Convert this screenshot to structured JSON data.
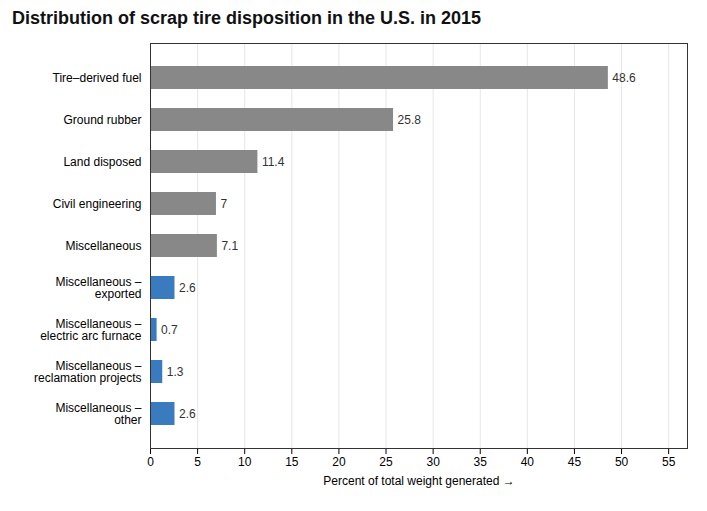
{
  "chart_data": {
    "type": "bar",
    "orientation": "horizontal",
    "title": "Distribution of scrap tire disposition in the U.S. in 2015",
    "categories": [
      "Miscellaneous –\n   other",
      "Miscellaneous –\nreclamation projects",
      "Miscellaneous –\nelectric arc furnace",
      "Miscellaneous –\n   exported",
      "Miscellaneous",
      "Civil engineering",
      "Land disposed",
      "Ground rubber",
      "Tire–derived fuel"
    ],
    "values": [
      2.6,
      1.3,
      0.7,
      2.6,
      7.1,
      7.0,
      11.4,
      25.8,
      48.6
    ],
    "value_labels": [
      "2.6",
      "1.3",
      "0.7",
      "2.6",
      "7.1",
      "7",
      "11.4",
      "25.8",
      "48.6"
    ],
    "colors": [
      "#3a7abf",
      "#3a7abf",
      "#3a7abf",
      "#3a7abf",
      "#888888",
      "#888888",
      "#888888",
      "#888888",
      "#888888"
    ],
    "xlabel": "Percent of total weight generated",
    "xlim": [
      0,
      57
    ],
    "xticks": [
      0,
      5,
      10,
      15,
      20,
      25,
      30,
      35,
      40,
      45,
      50,
      55
    ],
    "grid": true,
    "data_labels": true
  }
}
